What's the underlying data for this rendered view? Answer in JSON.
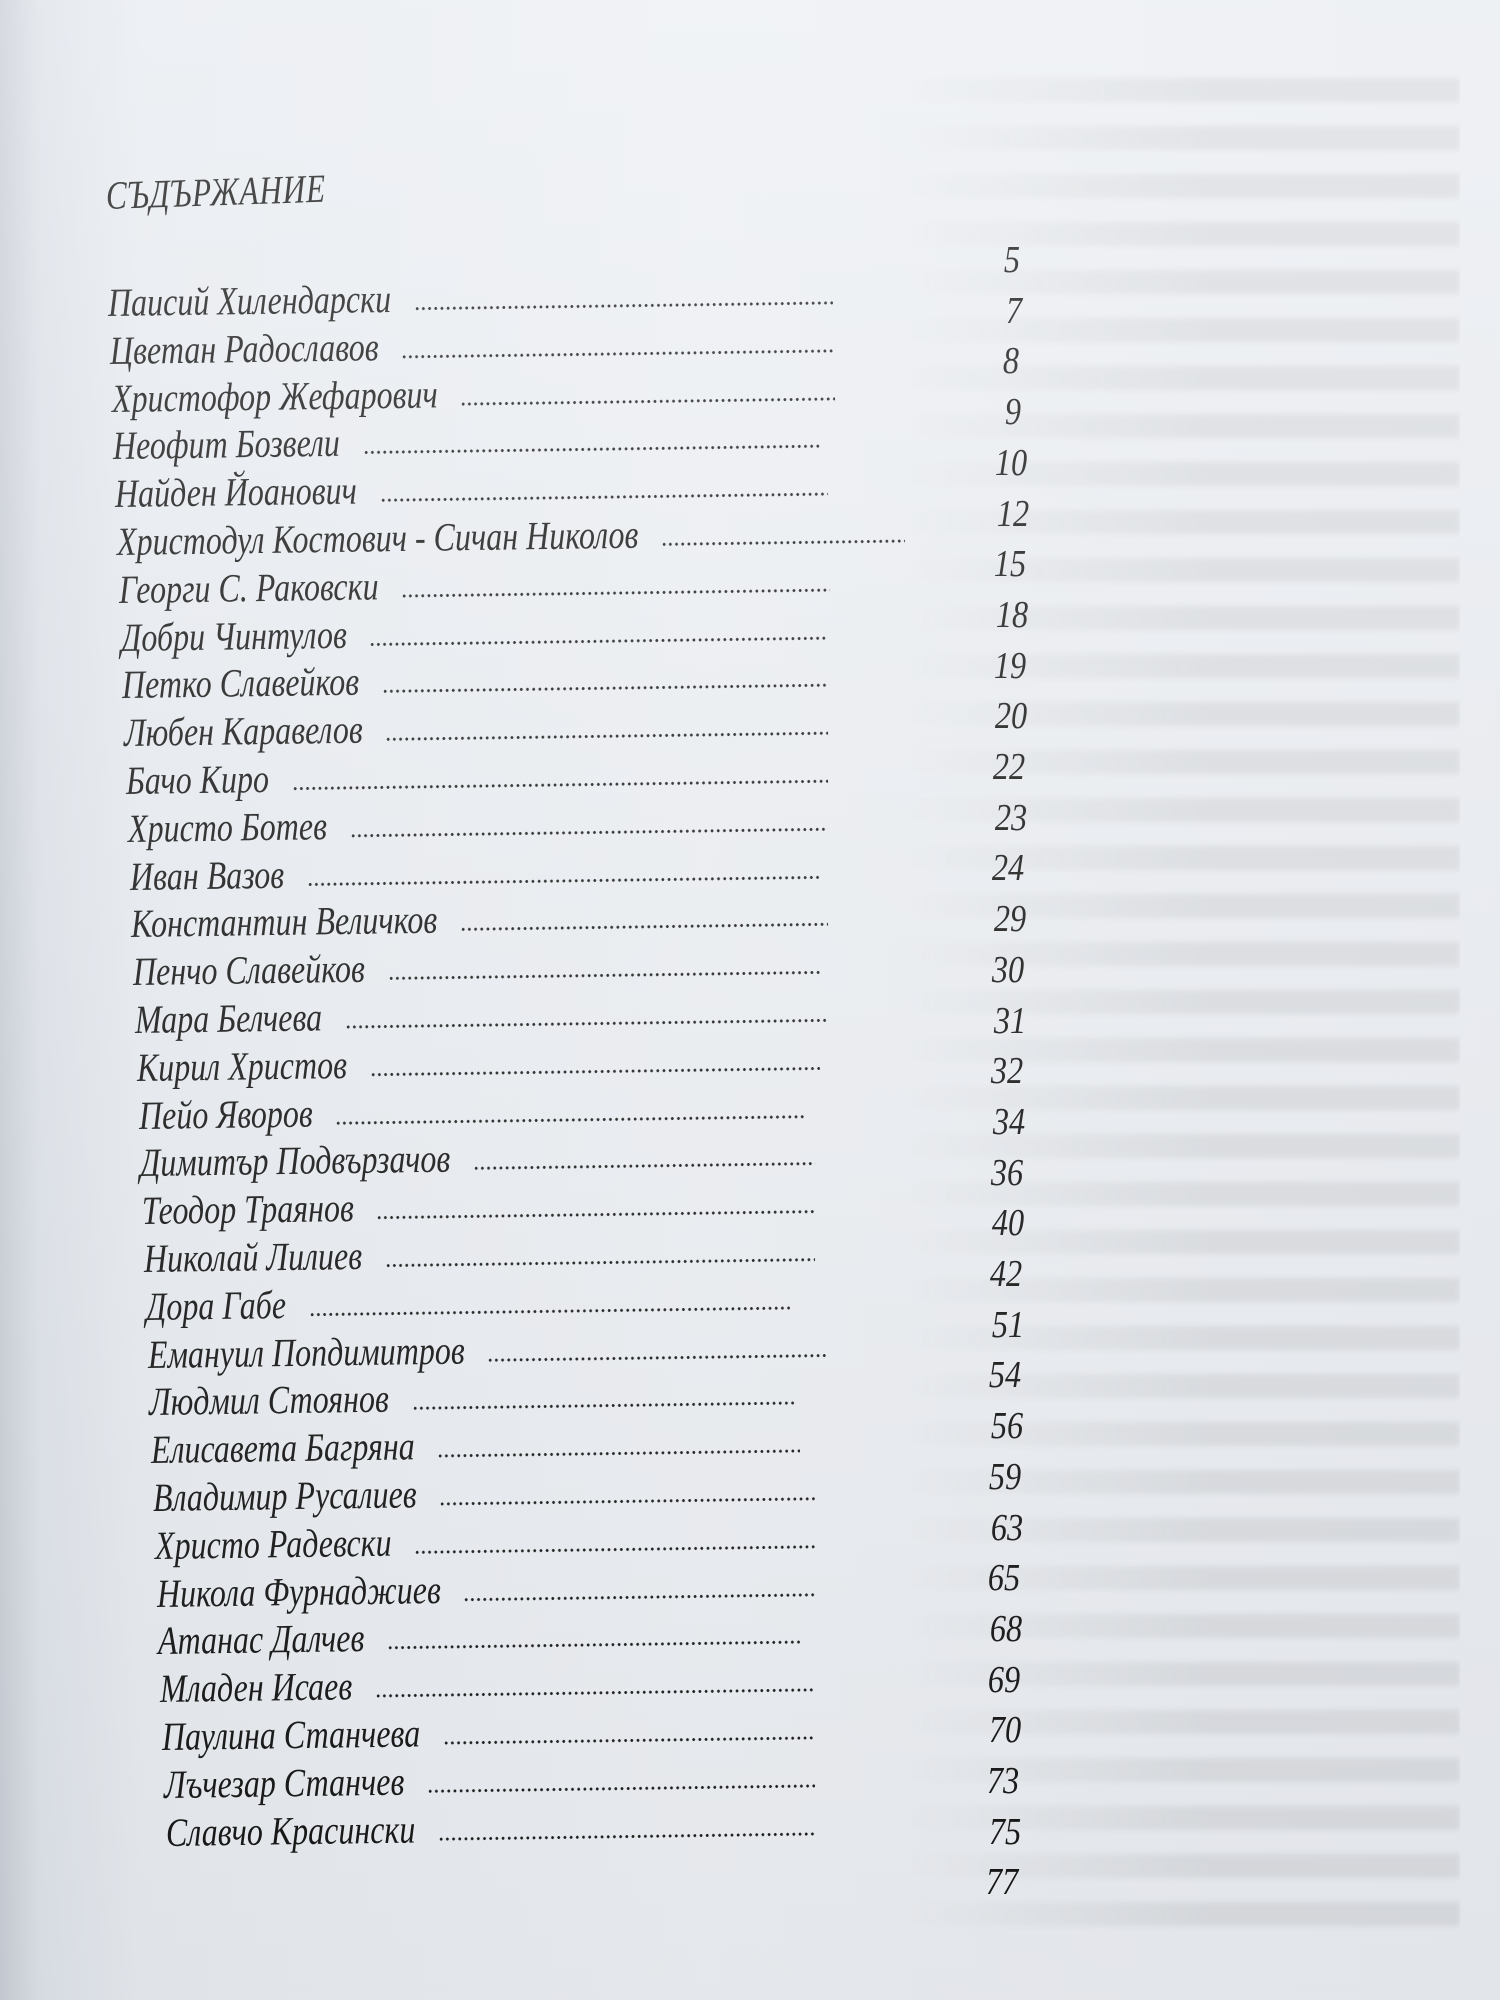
{
  "title": "СЪДЪРЖАНИЕ",
  "entries": [
    "Паисий Хилендарски",
    "Цветан Радославов",
    "Христофор Жефарович",
    "Неофит Бозвели",
    "Найден Йоанович",
    "Христодул Костович - Сичан Николов",
    "Георги С. Раковски",
    "Добри Чинтулов",
    "Петко Славейков",
    "Любен Каравелов",
    "Бачо Киро",
    "Христо Ботев",
    "Иван Вазов",
    "Константин Величков",
    "Пенчо Славейков",
    "Мара Белчева",
    "Кирил Христов",
    "Пейо Яворов",
    "Димитър Подвързачов",
    "Теодор Траянов",
    "Николай Лилиев",
    "Дора Габе",
    "Емануил Попдимитров",
    "Людмил Стоянов",
    "Елисавета Багряна",
    "Владимир Русалиев",
    "Христо Радевски",
    "Никола Фурнаджиев",
    "Атанас Далчев",
    "Младен Исаев",
    "Паулина Станчева",
    "Лъчезар Станчев",
    "Славчо Красински"
  ],
  "pages": [
    "5",
    "7",
    "8",
    "9",
    "10",
    "12",
    "15",
    "18",
    "19",
    "20",
    "22",
    "23",
    "24",
    "29",
    "30",
    "31",
    "32",
    "34",
    "36",
    "40",
    "42",
    "51",
    "54",
    "56",
    "59",
    "63",
    "65",
    "68",
    "69",
    "70",
    "73",
    "75",
    "77"
  ]
}
